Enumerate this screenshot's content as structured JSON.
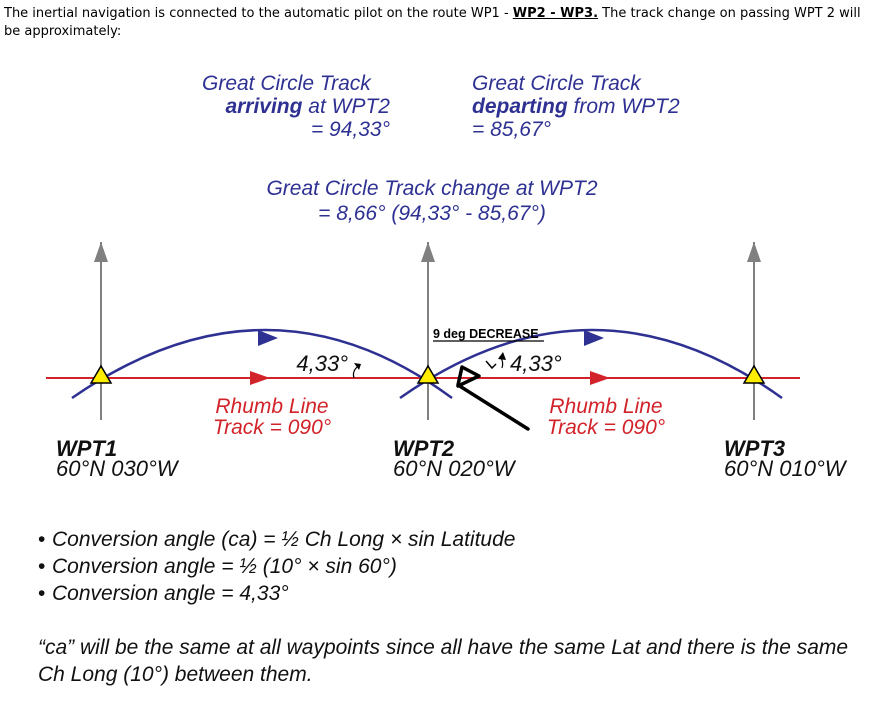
{
  "question": {
    "text_a": "The inertial navigation is connected to the automatic pilot on the route WP1 - ",
    "wp2": "WP2 - WP3.",
    "text_b": " The track change on passing WPT 2 will be approximately:"
  },
  "diagram": {
    "arriving": {
      "line1": "Great Circle Track",
      "bold": "arriving",
      "rest": " at WPT2",
      "value": "= 94,33°"
    },
    "departing": {
      "line1": "Great Circle Track",
      "bold": "departing",
      "rest": " from WPT2",
      "value": "= 85,67°"
    },
    "change": {
      "line1": "Great Circle Track change at WPT2",
      "line2": "= 8,66° (94,33° - 85,67°)"
    },
    "annotation": "9 deg DECREASE",
    "ca_left": "4,33°",
    "ca_right": "4,33°",
    "rhumb_left": {
      "line1": "Rhumb Line",
      "line2": "Track = 090°"
    },
    "rhumb_right": {
      "line1": "Rhumb Line",
      "line2": "Track = 090°"
    },
    "waypoints": [
      {
        "name": "WPT1",
        "coords": "60°N 030°W"
      },
      {
        "name": "WPT2",
        "coords": "60°N 020°W"
      },
      {
        "name": "WPT3",
        "coords": "60°N 010°W"
      }
    ],
    "colors": {
      "great_circle": "#2e3192",
      "rhumb": "#d2232a",
      "meridian": "#808080",
      "waypoint": "#ffed00"
    }
  },
  "bullets": [
    "Conversion angle (ca) = ½ Ch Long × sin Latitude",
    "Conversion angle = ½ (10° × sin 60°)",
    "Conversion angle = 4,33°"
  ],
  "footer": "“ca” will be the same at all waypoints since all have the same Lat and there is the same Ch Long (10°) between them."
}
